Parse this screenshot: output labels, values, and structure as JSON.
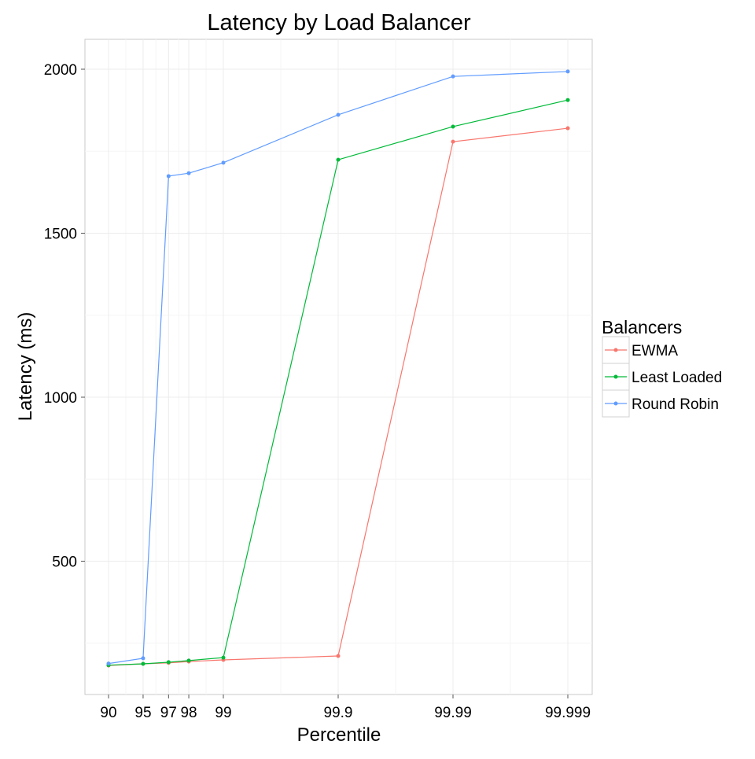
{
  "chart_data": {
    "type": "line",
    "title": "Latency by Load Balancer",
    "xlabel": "Percentile",
    "ylabel": "Latency (ms)",
    "x_scale": "reversed log of (100 - percentile)",
    "x": [
      90,
      95,
      97,
      98,
      99,
      99.9,
      99.99,
      99.999
    ],
    "x_tick_labels": [
      "90",
      "95",
      "97",
      "98",
      "99",
      "99.9",
      "99.99",
      "99.999"
    ],
    "y_ticks": [
      500,
      1000,
      1500,
      2000
    ],
    "ylim": [
      90,
      2090
    ],
    "grid": true,
    "legend": {
      "title": "Balancers",
      "position": "right"
    },
    "series": [
      {
        "name": "EWMA",
        "color": "#F8766D",
        "values": [
          182,
          187,
          190,
          194,
          199,
          211,
          1779,
          1820
        ]
      },
      {
        "name": "Least Loaded",
        "color": "#00BA38",
        "values": [
          183,
          187,
          192,
          197,
          206,
          1724,
          1825,
          1906
        ]
      },
      {
        "name": "Round Robin",
        "color": "#619CFF",
        "values": [
          188,
          204,
          1674,
          1683,
          1715,
          1861,
          1978,
          1993
        ]
      }
    ]
  }
}
